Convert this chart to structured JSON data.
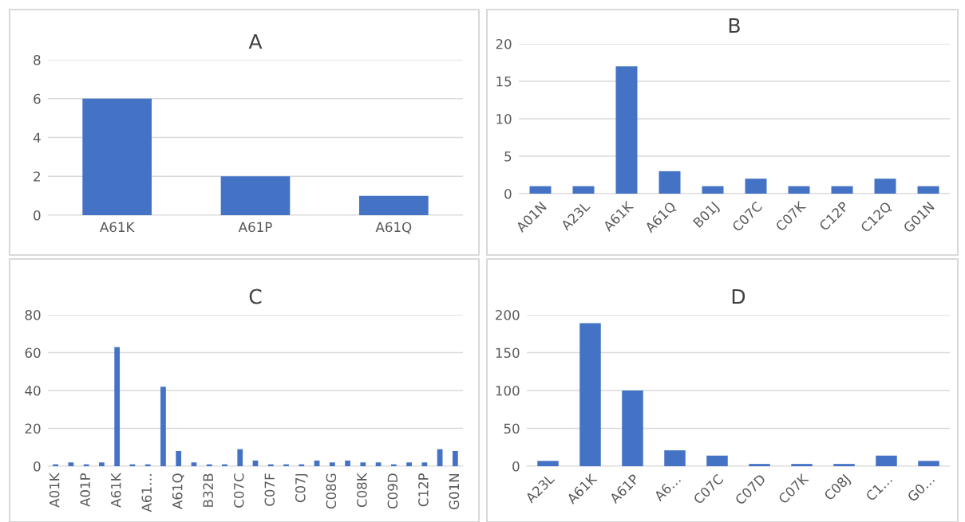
{
  "chart_data": [
    {
      "type": "bar",
      "title": "A",
      "categories": [
        "A61K",
        "A61P",
        "A61Q"
      ],
      "values": [
        6,
        2,
        1
      ],
      "color": "#4472c4",
      "ylim": [
        0,
        8
      ],
      "yticks": [
        0,
        2,
        4,
        6,
        8
      ],
      "grid": "y"
    },
    {
      "type": "bar",
      "title": "B",
      "categories": [
        "A01N",
        "A23L",
        "A61K",
        "A61Q",
        "B01J",
        "C07C",
        "C07K",
        "C12P",
        "C12Q",
        "G01N"
      ],
      "values": [
        1,
        1,
        17,
        3,
        1,
        2,
        1,
        1,
        2,
        1
      ],
      "color": "#4472c4",
      "ylim": [
        0,
        20
      ],
      "yticks": [
        0,
        5,
        10,
        15,
        20
      ],
      "grid": "y"
    },
    {
      "type": "bar",
      "title": "C",
      "categories": [
        "A01K",
        null,
        "A01P",
        null,
        "A61K",
        null,
        "A61…",
        null,
        "A61Q",
        null,
        "B32B",
        null,
        "C07C",
        null,
        "C07F",
        null,
        "C07J",
        null,
        "C08G",
        null,
        "C08K",
        null,
        "C09D",
        null,
        "C12P",
        null,
        "G01N"
      ],
      "values": [
        1,
        2,
        1,
        2,
        63,
        1,
        1,
        42,
        8,
        2,
        1,
        1,
        9,
        3,
        1,
        1,
        1,
        3,
        2,
        3,
        2,
        2,
        1,
        2,
        2,
        9,
        8
      ],
      "color": "#4472c4",
      "ylim": [
        0,
        80
      ],
      "yticks": [
        0,
        20,
        40,
        60,
        80
      ],
      "grid": "y"
    },
    {
      "type": "bar",
      "title": "D",
      "categories": [
        "A23L",
        "A61K",
        "A61P",
        "A6…",
        "C07C",
        "C07D",
        "C07K",
        "C08J",
        "C1…",
        "G0…"
      ],
      "values": [
        7,
        189,
        100,
        21,
        14,
        3,
        3,
        3,
        14,
        7
      ],
      "color": "#4472c4",
      "ylim": [
        0,
        200
      ],
      "yticks": [
        0,
        50,
        100,
        150,
        200
      ],
      "grid": "y"
    }
  ]
}
